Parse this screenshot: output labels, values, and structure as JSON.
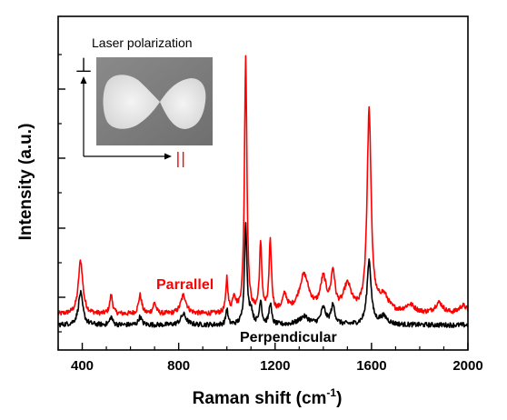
{
  "chart_data": {
    "type": "line",
    "title": "",
    "xlabel": "Raman shift (cm",
    "xlabel_sup": "-1",
    "xlabel_close": ")",
    "ylabel": "Intensity (a.u.)",
    "xlim": [
      300,
      2000
    ],
    "ylim": [
      0,
      1
    ],
    "x_ticks": [
      400,
      800,
      1200,
      1600,
      2000
    ],
    "x_tick_labels": [
      "400",
      "800",
      "1200",
      "1600",
      "2000"
    ],
    "y_tick_labels_shown": false,
    "grid": false,
    "inset": {
      "title": "Laser polarization",
      "perpendicular_symbol": "⊥",
      "parallel_symbol": "||"
    },
    "series": [
      {
        "name": "Parrallel",
        "color": "#ff0000",
        "baseline": 0.055,
        "peaks": [
          [
            393,
            0.2,
            11
          ],
          [
            520,
            0.07,
            7
          ],
          [
            640,
            0.07,
            8
          ],
          [
            700,
            0.04,
            8
          ],
          [
            820,
            0.07,
            14
          ],
          [
            1000,
            0.13,
            5
          ],
          [
            1030,
            0.06,
            8
          ],
          [
            1078,
            0.96,
            6
          ],
          [
            1140,
            0.25,
            6
          ],
          [
            1180,
            0.26,
            6
          ],
          [
            1240,
            0.06,
            12
          ],
          [
            1320,
            0.14,
            25
          ],
          [
            1400,
            0.12,
            15
          ],
          [
            1440,
            0.14,
            10
          ],
          [
            1500,
            0.1,
            20
          ],
          [
            1590,
            0.75,
            10
          ],
          [
            1650,
            0.06,
            25
          ],
          [
            1760,
            0.03,
            25
          ],
          [
            1880,
            0.04,
            20
          ],
          [
            1980,
            0.03,
            20
          ]
        ]
      },
      {
        "name": "Perpendicular",
        "color": "#000000",
        "baseline": 0.015,
        "peaks": [
          [
            393,
            0.12,
            11
          ],
          [
            520,
            0.03,
            7
          ],
          [
            640,
            0.03,
            8
          ],
          [
            820,
            0.04,
            14
          ],
          [
            1000,
            0.06,
            5
          ],
          [
            1078,
            0.38,
            6
          ],
          [
            1100,
            0.05,
            8
          ],
          [
            1140,
            0.09,
            6
          ],
          [
            1180,
            0.08,
            6
          ],
          [
            1320,
            0.03,
            25
          ],
          [
            1400,
            0.06,
            12
          ],
          [
            1440,
            0.07,
            10
          ],
          [
            1590,
            0.24,
            10
          ],
          [
            1650,
            0.03,
            20
          ]
        ]
      }
    ]
  }
}
